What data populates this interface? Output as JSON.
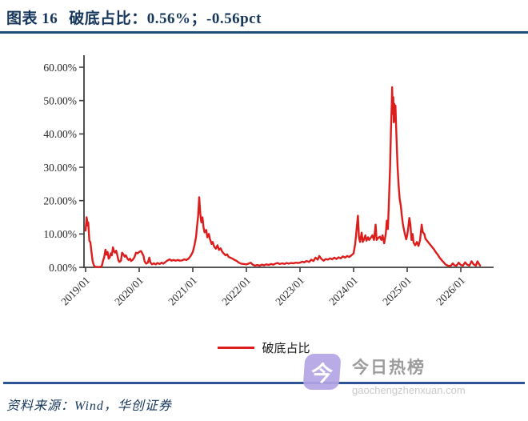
{
  "header": {
    "figure_label": "图表  16",
    "title": "破底占比：0.56%；-0.56pct"
  },
  "chart_data": {
    "type": "line",
    "title": "破底占比：0.56%；-0.56pct",
    "current_value": "0.56%",
    "change": "-0.56pct",
    "x_tick_labels": [
      "2019/01",
      "2020/01",
      "2021/01",
      "2022/01",
      "2023/01",
      "2024/01",
      "2025/01",
      "2026/01"
    ],
    "y_tick_labels": [
      "60.00%",
      "50.00%",
      "40.00%",
      "30.00%",
      "20.00%",
      "10.00%",
      "0.00%"
    ],
    "ylim": [
      0,
      60
    ],
    "x_axis_note": "points given as [years offset from 2019/01, percent value]",
    "grid": "off",
    "legend": {
      "label": "破底占比",
      "position": "bottom-center"
    },
    "series": [
      {
        "name": "破底占比",
        "color": "#DD1C1C",
        "points": [
          [
            0.0,
            11
          ],
          [
            0.02,
            15
          ],
          [
            0.04,
            12.5
          ],
          [
            0.05,
            13.5
          ],
          [
            0.07,
            8
          ],
          [
            0.09,
            7.5
          ],
          [
            0.11,
            4.5
          ],
          [
            0.13,
            2
          ],
          [
            0.15,
            0.8
          ],
          [
            0.17,
            0.2
          ],
          [
            0.21,
            0.1
          ],
          [
            0.26,
            0.1
          ],
          [
            0.3,
            0.3
          ],
          [
            0.33,
            2.2
          ],
          [
            0.35,
            3.2
          ],
          [
            0.37,
            5.3
          ],
          [
            0.39,
            3.8
          ],
          [
            0.41,
            4.6
          ],
          [
            0.43,
            2.6
          ],
          [
            0.45,
            3
          ],
          [
            0.47,
            4.2
          ],
          [
            0.49,
            3.6
          ],
          [
            0.51,
            6
          ],
          [
            0.53,
            4.8
          ],
          [
            0.55,
            4.4
          ],
          [
            0.57,
            5
          ],
          [
            0.59,
            3.8
          ],
          [
            0.61,
            2.2
          ],
          [
            0.63,
            1.6
          ],
          [
            0.66,
            2
          ],
          [
            0.68,
            4.4
          ],
          [
            0.7,
            4
          ],
          [
            0.73,
            3.2
          ],
          [
            0.75,
            3.6
          ],
          [
            0.78,
            2.6
          ],
          [
            0.8,
            2.2
          ],
          [
            0.83,
            2.6
          ],
          [
            0.85,
            1.9
          ],
          [
            0.88,
            2.3
          ],
          [
            0.91,
            3
          ],
          [
            0.94,
            4.4
          ],
          [
            0.97,
            4.2
          ],
          [
            1.0,
            4.6
          ],
          [
            1.03,
            4.9
          ],
          [
            1.05,
            4.4
          ],
          [
            1.08,
            3.4
          ],
          [
            1.1,
            1.8
          ],
          [
            1.13,
            1.1
          ],
          [
            1.16,
            1.4
          ],
          [
            1.19,
            2.9
          ],
          [
            1.21,
            1.4
          ],
          [
            1.24,
            0.9
          ],
          [
            1.27,
            1.2
          ],
          [
            1.31,
            0.9
          ],
          [
            1.34,
            1.3
          ],
          [
            1.38,
            1
          ],
          [
            1.42,
            1.4
          ],
          [
            1.45,
            1.1
          ],
          [
            1.49,
            1.6
          ],
          [
            1.53,
            2.1
          ],
          [
            1.57,
            2.4
          ],
          [
            1.6,
            2
          ],
          [
            1.64,
            2.2
          ],
          [
            1.68,
            2
          ],
          [
            1.72,
            2.2
          ],
          [
            1.76,
            2
          ],
          [
            1.8,
            2.1
          ],
          [
            1.84,
            2.4
          ],
          [
            1.88,
            2.2
          ],
          [
            1.92,
            2.6
          ],
          [
            1.96,
            3.4
          ],
          [
            2.0,
            4.6
          ],
          [
            2.03,
            6.5
          ],
          [
            2.06,
            9
          ],
          [
            2.08,
            12.5
          ],
          [
            2.1,
            15.5
          ],
          [
            2.12,
            21
          ],
          [
            2.14,
            16
          ],
          [
            2.16,
            13.5
          ],
          [
            2.18,
            15
          ],
          [
            2.2,
            12
          ],
          [
            2.22,
            10.5
          ],
          [
            2.25,
            11.2
          ],
          [
            2.27,
            9
          ],
          [
            2.3,
            10
          ],
          [
            2.32,
            8.5
          ],
          [
            2.35,
            7
          ],
          [
            2.37,
            7.6
          ],
          [
            2.4,
            6.2
          ],
          [
            2.43,
            5.6
          ],
          [
            2.46,
            6.6
          ],
          [
            2.49,
            5.2
          ],
          [
            2.52,
            5.7
          ],
          [
            2.55,
            4.6
          ],
          [
            2.58,
            4.1
          ],
          [
            2.61,
            3.6
          ],
          [
            2.64,
            3.9
          ],
          [
            2.67,
            3.1
          ],
          [
            2.7,
            2.9
          ],
          [
            2.74,
            2.6
          ],
          [
            2.78,
            2.2
          ],
          [
            2.82,
            1.9
          ],
          [
            2.86,
            1.4
          ],
          [
            2.9,
            1.1
          ],
          [
            2.95,
            1
          ],
          [
            3.0,
            0.9
          ],
          [
            3.04,
            1.1
          ],
          [
            3.08,
            1.4
          ],
          [
            3.12,
            0.8
          ],
          [
            3.16,
            0.5
          ],
          [
            3.2,
            0.7
          ],
          [
            3.25,
            0.5
          ],
          [
            3.29,
            0.8
          ],
          [
            3.33,
            0.6
          ],
          [
            3.37,
            0.9
          ],
          [
            3.42,
            0.7
          ],
          [
            3.46,
            1
          ],
          [
            3.5,
            0.8
          ],
          [
            3.54,
            1.1
          ],
          [
            3.58,
            1.3
          ],
          [
            3.62,
            1
          ],
          [
            3.67,
            1.2
          ],
          [
            3.71,
            1
          ],
          [
            3.75,
            1.3
          ],
          [
            3.79,
            1.1
          ],
          [
            3.83,
            1.3
          ],
          [
            3.88,
            1.2
          ],
          [
            3.92,
            1.4
          ],
          [
            3.96,
            1.3
          ],
          [
            4.0,
            1.4
          ],
          [
            4.04,
            1.7
          ],
          [
            4.08,
            1.5
          ],
          [
            4.12,
            1.9
          ],
          [
            4.17,
            1.6
          ],
          [
            4.21,
            2.3
          ],
          [
            4.25,
            1.9
          ],
          [
            4.29,
            2.9
          ],
          [
            4.33,
            2.3
          ],
          [
            4.36,
            3.4
          ],
          [
            4.4,
            2.5
          ],
          [
            4.44,
            2
          ],
          [
            4.48,
            2.5
          ],
          [
            4.52,
            2.3
          ],
          [
            4.56,
            2.7
          ],
          [
            4.6,
            2.4
          ],
          [
            4.64,
            2.9
          ],
          [
            4.68,
            2.5
          ],
          [
            4.72,
            3
          ],
          [
            4.76,
            2.7
          ],
          [
            4.8,
            3.3
          ],
          [
            4.84,
            2.9
          ],
          [
            4.88,
            3.4
          ],
          [
            4.92,
            3.1
          ],
          [
            4.96,
            3.6
          ],
          [
            5.0,
            4.2
          ],
          [
            5.03,
            7
          ],
          [
            5.06,
            12
          ],
          [
            5.08,
            15.5
          ],
          [
            5.1,
            9
          ],
          [
            5.12,
            7.6
          ],
          [
            5.15,
            10.4
          ],
          [
            5.17,
            7.6
          ],
          [
            5.19,
            8.2
          ],
          [
            5.22,
            9.6
          ],
          [
            5.24,
            8
          ],
          [
            5.27,
            9
          ],
          [
            5.29,
            8.2
          ],
          [
            5.32,
            8.8
          ],
          [
            5.35,
            9.6
          ],
          [
            5.38,
            8.2
          ],
          [
            5.41,
            12.8
          ],
          [
            5.43,
            8.2
          ],
          [
            5.46,
            8.8
          ],
          [
            5.49,
            9.2
          ],
          [
            5.52,
            8.2
          ],
          [
            5.54,
            9.6
          ],
          [
            5.57,
            7.2
          ],
          [
            5.6,
            10
          ],
          [
            5.62,
            14
          ],
          [
            5.64,
            11.5
          ],
          [
            5.66,
            20
          ],
          [
            5.68,
            30
          ],
          [
            5.7,
            43
          ],
          [
            5.71,
            48
          ],
          [
            5.72,
            54
          ],
          [
            5.73,
            46
          ],
          [
            5.74,
            51
          ],
          [
            5.75,
            43.5
          ],
          [
            5.76,
            49
          ],
          [
            5.77,
            44
          ],
          [
            5.78,
            48.5
          ],
          [
            5.8,
            39
          ],
          [
            5.82,
            30.5
          ],
          [
            5.84,
            24.5
          ],
          [
            5.86,
            20.5
          ],
          [
            5.88,
            18.5
          ],
          [
            5.9,
            15.5
          ],
          [
            5.92,
            13
          ],
          [
            5.94,
            11.2
          ],
          [
            5.96,
            9.8
          ],
          [
            5.98,
            8.4
          ],
          [
            6.0,
            9.6
          ],
          [
            6.02,
            11.8
          ],
          [
            6.04,
            14.8
          ],
          [
            6.06,
            12.8
          ],
          [
            6.08,
            8.2
          ],
          [
            6.1,
            10
          ],
          [
            6.12,
            7.4
          ],
          [
            6.15,
            6.6
          ],
          [
            6.18,
            7.6
          ],
          [
            6.21,
            6.4
          ],
          [
            6.24,
            8.2
          ],
          [
            6.27,
            12.8
          ],
          [
            6.29,
            10.6
          ],
          [
            6.32,
            10
          ],
          [
            6.34,
            8.6
          ],
          [
            6.37,
            8
          ],
          [
            6.4,
            7.4
          ],
          [
            6.43,
            6.8
          ],
          [
            6.46,
            6.2
          ],
          [
            6.5,
            5.4
          ],
          [
            6.53,
            4.6
          ],
          [
            6.57,
            3.8
          ],
          [
            6.6,
            3
          ],
          [
            6.64,
            2.2
          ],
          [
            6.68,
            1.5
          ],
          [
            6.72,
            0.8
          ],
          [
            6.76,
            0.5
          ],
          [
            6.81,
            0.4
          ],
          [
            6.85,
            1.2
          ],
          [
            6.88,
            0.6
          ],
          [
            6.92,
            0.5
          ],
          [
            6.96,
            1.4
          ],
          [
            7.0,
            0.7
          ],
          [
            7.04,
            0.5
          ],
          [
            7.08,
            1.5
          ],
          [
            7.12,
            0.8
          ],
          [
            7.16,
            0.5
          ],
          [
            7.2,
            1.8
          ],
          [
            7.24,
            0.9
          ],
          [
            7.28,
            0.5
          ],
          [
            7.31,
            1.8
          ],
          [
            7.34,
            1.0
          ],
          [
            7.36,
            0.56
          ]
        ]
      }
    ]
  },
  "legend": {
    "label": "破底占比"
  },
  "footer": {
    "source": "资料来源：Wind，华创证券"
  },
  "watermark": {
    "icon_text": "今",
    "title": "今日热榜",
    "subtitle": "gaochengzhenxuan.com"
  },
  "colors": {
    "title_navy": "#16365C",
    "rule_navy": "#1F4E79",
    "bottom_rule_navy": "#2E5496",
    "series_red": "#DD1C1C",
    "axis": "#3F3F3F",
    "watermark_purple": "#B3A4E4"
  }
}
